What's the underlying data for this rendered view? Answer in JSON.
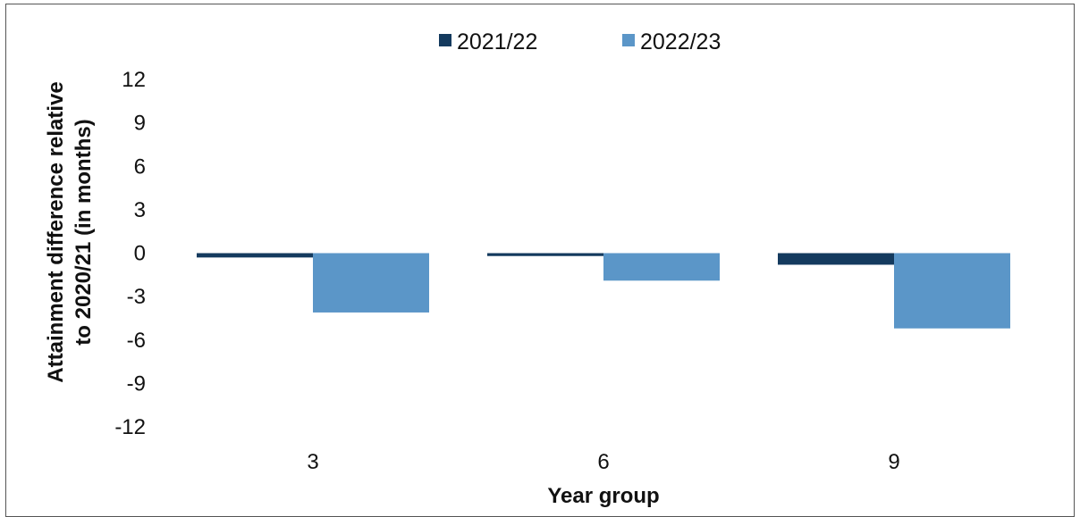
{
  "chart_data": {
    "type": "bar",
    "title": "",
    "xlabel": "Year group",
    "ylabel_lines": [
      "Attainment difference relative",
      "to 2020/21 (in months)"
    ],
    "categories": [
      "3",
      "6",
      "9"
    ],
    "series": [
      {
        "name": "2021/22",
        "color": "#143a5e",
        "values": [
          -0.3,
          -0.2,
          -0.8
        ]
      },
      {
        "name": "2022/23",
        "color": "#5b96c8",
        "values": [
          -4.1,
          -1.9,
          -5.2
        ]
      }
    ],
    "ylim": [
      -12,
      12
    ],
    "yticks": [
      12,
      9,
      6,
      3,
      0,
      -3,
      -6,
      -9,
      -12
    ],
    "grid": false,
    "legend_position": "top-center"
  }
}
